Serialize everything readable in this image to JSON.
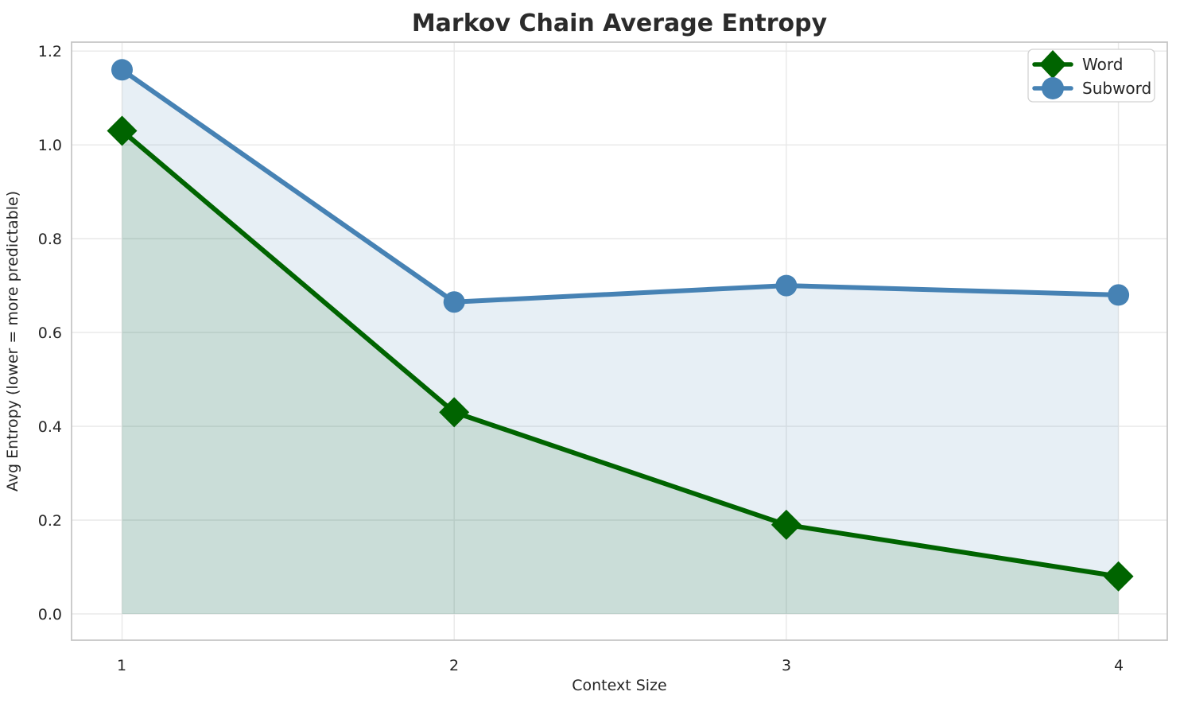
{
  "chart_data": {
    "type": "line",
    "title": "Markov Chain Average Entropy",
    "xlabel": "Context Size",
    "ylabel": "Avg Entropy (lower = more predictable)",
    "x": [
      1,
      2,
      3,
      4
    ],
    "x_tick_labels": [
      "1",
      "2",
      "3",
      "4"
    ],
    "y_ticks": [
      0.0,
      0.2,
      0.4,
      0.6,
      0.8,
      1.0,
      1.2
    ],
    "y_tick_labels": [
      "0.0",
      "0.2",
      "0.4",
      "0.6",
      "0.8",
      "1.0",
      "1.2"
    ],
    "xlim": [
      0.848,
      4.147
    ],
    "ylim": [
      -0.056,
      1.219
    ],
    "grid": true,
    "legend_position": "upper right",
    "series": [
      {
        "name": "Word",
        "values": [
          1.03,
          0.43,
          0.19,
          0.08
        ],
        "color": "#006400",
        "marker": "diamond",
        "fill_alpha": 0.13,
        "line_width": 6
      },
      {
        "name": "Subword",
        "values": [
          1.16,
          0.665,
          0.7,
          0.68
        ],
        "color": "#4682B4",
        "marker": "circle",
        "fill_alpha": 0.13,
        "line_width": 6
      }
    ],
    "colors": {
      "grid": "#e8e8e8",
      "frame": "#c6c6c6",
      "text": "#262626",
      "title": "#2b2b2b"
    }
  }
}
